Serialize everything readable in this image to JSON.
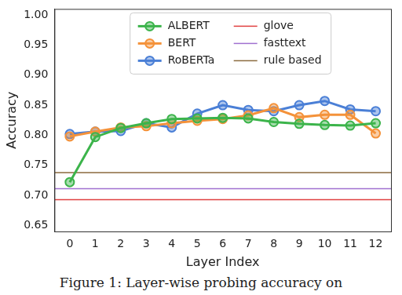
{
  "chart_data": {
    "type": "line",
    "caption": "Figure 1: Layer-wise probing accuracy on",
    "x_label": "Layer Index",
    "y_label": "Accuracy",
    "x": [
      0,
      1,
      2,
      3,
      4,
      5,
      6,
      7,
      8,
      9,
      10,
      11,
      12
    ],
    "series": [
      {
        "name": "ALBERT",
        "color": "#3cb44b",
        "marker": "circle",
        "values": [
          0.722,
          0.797,
          0.812,
          0.82,
          0.827,
          0.828,
          0.829,
          0.828,
          0.822,
          0.819,
          0.817,
          0.816,
          0.82
        ]
      },
      {
        "name": "BERT",
        "color": "#f4923a",
        "marker": "circle",
        "values": [
          0.798,
          0.806,
          0.813,
          0.815,
          0.82,
          0.824,
          0.827,
          0.833,
          0.845,
          0.83,
          0.834,
          0.834,
          0.803
        ]
      },
      {
        "name": "RoBERTa",
        "color": "#4a7fd6",
        "marker": "circle",
        "values": [
          0.802,
          0.806,
          0.807,
          0.82,
          0.813,
          0.836,
          0.85,
          0.842,
          0.84,
          0.85,
          0.857,
          0.843,
          0.84
        ]
      }
    ],
    "hlines": [
      {
        "name": "glove",
        "color": "#e04040",
        "value": 0.693
      },
      {
        "name": "fasttext",
        "color": "#a070d0",
        "value": 0.711
      },
      {
        "name": "rule based",
        "color": "#8b6a3e",
        "value": 0.738
      }
    ],
    "xlim": [
      -0.6,
      12.6
    ],
    "xticks": [
      0,
      1,
      2,
      3,
      4,
      5,
      6,
      7,
      8,
      9,
      10,
      11,
      12
    ],
    "ylim": [
      0.64,
      1.01
    ],
    "yticks": [
      {
        "value": 0.65,
        "label": "0.65"
      },
      {
        "value": 0.7,
        "label": "0.70"
      },
      {
        "value": 0.75,
        "label": "0.75"
      },
      {
        "value": 0.8,
        "label": "0.80"
      },
      {
        "value": 0.85,
        "label": "0.85"
      },
      {
        "value": 0.9,
        "label": "0.90"
      },
      {
        "value": 0.95,
        "label": "0.95"
      },
      {
        "value": 1,
        "label": "1.00"
      }
    ],
    "grid": false,
    "legend": "upper center"
  }
}
